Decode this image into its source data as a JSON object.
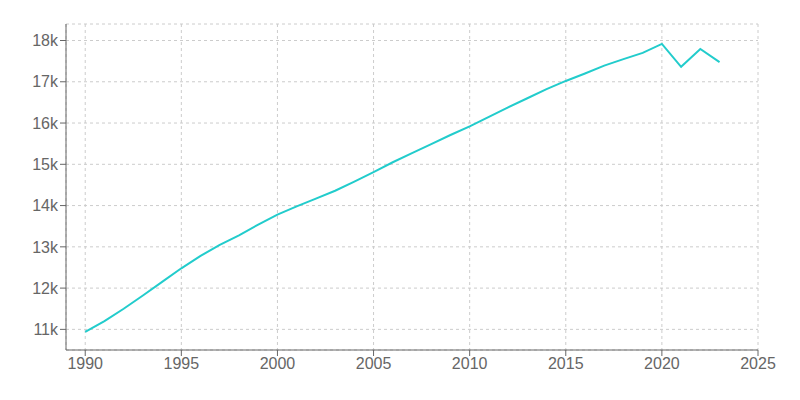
{
  "chart_data": {
    "type": "line",
    "x": [
      1990,
      1991,
      1992,
      1993,
      1994,
      1995,
      1996,
      1997,
      1998,
      1999,
      2000,
      2001,
      2002,
      2003,
      2004,
      2005,
      2006,
      2007,
      2008,
      2009,
      2010,
      2011,
      2012,
      2013,
      2014,
      2015,
      2016,
      2017,
      2018,
      2019,
      2020,
      2021,
      2022,
      2023
    ],
    "values": [
      10938,
      11200,
      11500,
      11820,
      12150,
      12480,
      12780,
      13050,
      13280,
      13540,
      13780,
      13980,
      14170,
      14360,
      14580,
      14810,
      15050,
      15270,
      15490,
      15710,
      15921,
      16150,
      16380,
      16600,
      16820,
      17020,
      17200,
      17390,
      17550,
      17700,
      17917,
      17362,
      17795,
      17476
    ],
    "color": "#22CCCC",
    "xlim": [
      1989,
      2025
    ],
    "ylim": [
      10500,
      18400
    ],
    "xticks": [
      1990,
      1995,
      2000,
      2005,
      2010,
      2015,
      2020,
      2025
    ],
    "yticks": [
      {
        "value": 11000,
        "label": "11k"
      },
      {
        "value": 12000,
        "label": "12k"
      },
      {
        "value": 13000,
        "label": "13k"
      },
      {
        "value": 14000,
        "label": "14k"
      },
      {
        "value": 15000,
        "label": "15k"
      },
      {
        "value": 16000,
        "label": "16k"
      },
      {
        "value": 17000,
        "label": "17k"
      },
      {
        "value": 18000,
        "label": "18k"
      }
    ],
    "grid": true
  }
}
